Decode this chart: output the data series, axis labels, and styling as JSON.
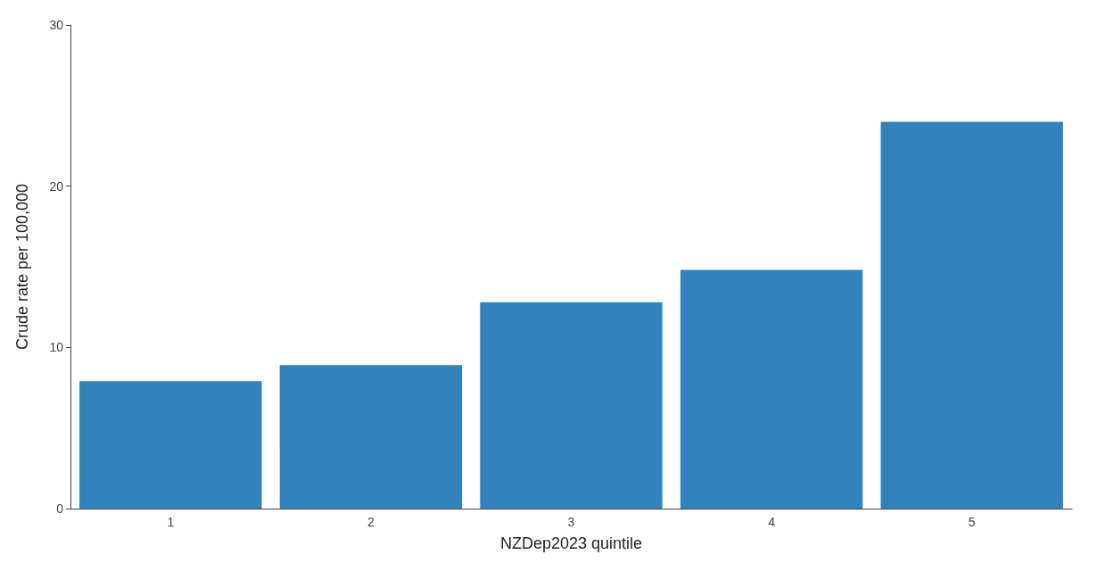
{
  "chart_data": {
    "type": "bar",
    "xlabel": "NZDep2023 quintile",
    "ylabel": "Crude rate per 100,000",
    "categories": [
      "1",
      "2",
      "3",
      "4",
      "5"
    ],
    "values": [
      7.9,
      8.9,
      12.8,
      14.8,
      24.0
    ],
    "color": "#3282bd",
    "ylim": [
      0,
      30
    ],
    "yticks": [
      0,
      10,
      20,
      30
    ],
    "grid": false
  }
}
